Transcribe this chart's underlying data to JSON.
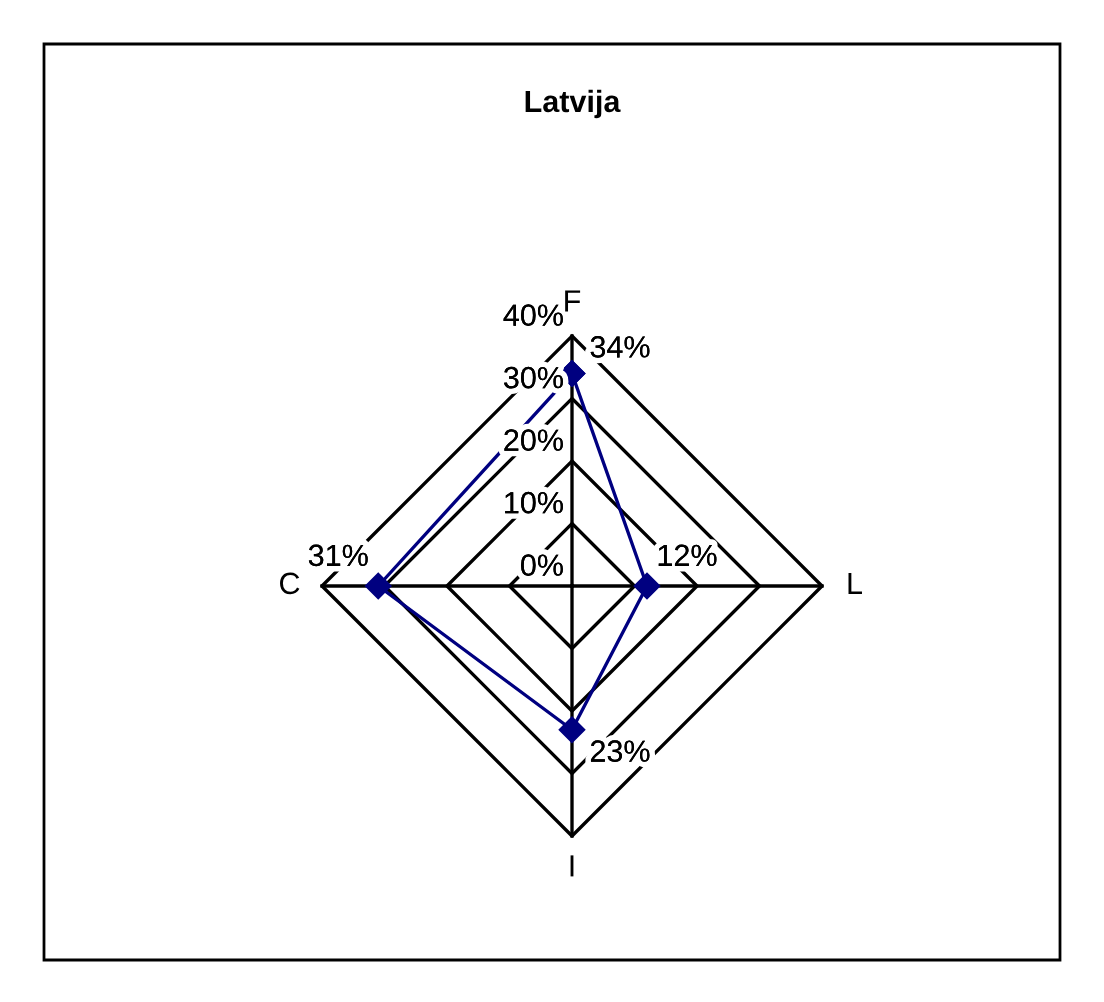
{
  "chart_data": {
    "type": "radar",
    "title": "Latvija",
    "categories": [
      "F",
      "L",
      "I",
      "C"
    ],
    "series": [
      {
        "color": "#000080",
        "values": [
          34,
          12,
          23,
          31
        ],
        "value_labels": [
          "34%",
          "12%",
          "23%",
          "31%"
        ]
      }
    ],
    "ylim": [
      0,
      40
    ],
    "yticks": [
      {
        "value": 0,
        "label": "0%"
      },
      {
        "value": 10,
        "label": "10%"
      },
      {
        "value": 20,
        "label": "20%"
      },
      {
        "value": 30,
        "label": "30%"
      },
      {
        "value": 40,
        "label": "40%"
      }
    ],
    "marker": "diamond",
    "line_style": "solid",
    "grid": true
  }
}
